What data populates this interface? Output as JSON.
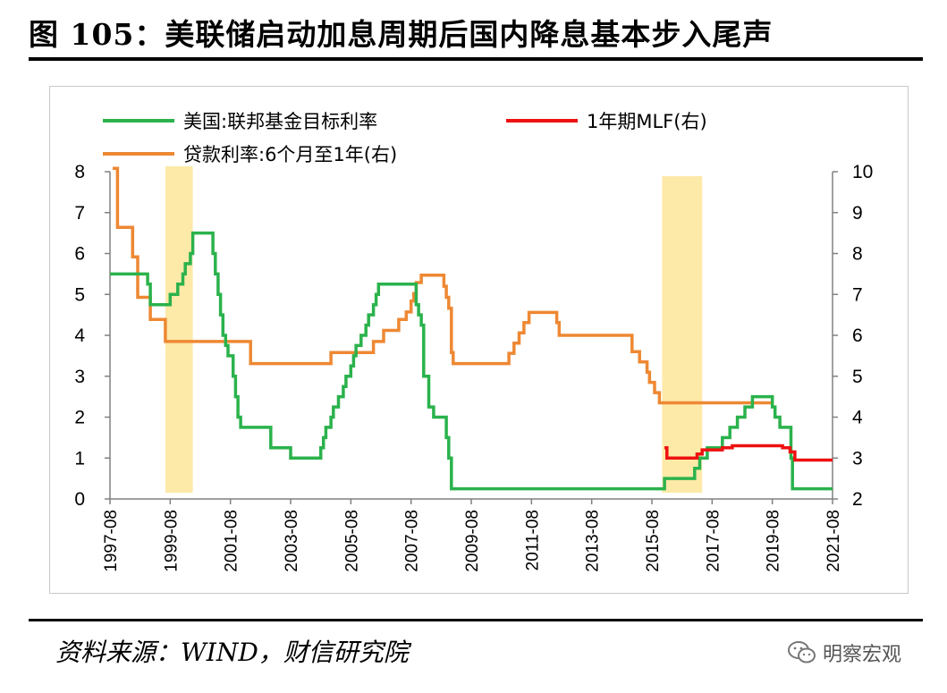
{
  "title": "图 105：美联储启动加息周期后国内降息基本步入尾声",
  "source": "资料来源：WIND，财信研究院",
  "watermark": "明察宏观",
  "watermark_icon": "wechat-icon",
  "chart_data": {
    "type": "line",
    "y_left_lim": [
      0,
      8
    ],
    "y_left_ticks": [
      "0",
      "1",
      "2",
      "3",
      "4",
      "5",
      "6",
      "7",
      "8"
    ],
    "y_right_lim": [
      2,
      10
    ],
    "y_right_ticks": [
      "2",
      "3",
      "4",
      "5",
      "6",
      "7",
      "8",
      "9",
      "10"
    ],
    "x_range": [
      1997.58,
      2021.58
    ],
    "x_ticks": [
      "1997-08",
      "1999-08",
      "2001-08",
      "2003-08",
      "2005-08",
      "2007-08",
      "2009-08",
      "2011-08",
      "2013-08",
      "2015-08",
      "2017-08",
      "2019-08",
      "2021-08"
    ],
    "grid": false,
    "legend": "top",
    "shaded_periods": [
      [
        1999.42,
        2000.33
      ],
      [
        2015.92,
        2017.25
      ]
    ],
    "series": [
      {
        "name": "美国:联邦基金目标利率",
        "axis": "left",
        "color": "#2bb24c",
        "points": [
          [
            1997.58,
            5.5
          ],
          [
            1998.75,
            5.5
          ],
          [
            1998.83,
            5.25
          ],
          [
            1998.92,
            4.75
          ],
          [
            1999.5,
            4.75
          ],
          [
            1999.58,
            5.0
          ],
          [
            1999.83,
            5.25
          ],
          [
            2000.0,
            5.5
          ],
          [
            2000.08,
            5.75
          ],
          [
            2000.25,
            6.0
          ],
          [
            2000.33,
            6.5
          ],
          [
            2000.92,
            6.5
          ],
          [
            2001.0,
            6.0
          ],
          [
            2001.08,
            5.5
          ],
          [
            2001.17,
            5.0
          ],
          [
            2001.25,
            4.5
          ],
          [
            2001.33,
            4.0
          ],
          [
            2001.42,
            3.75
          ],
          [
            2001.5,
            3.5
          ],
          [
            2001.67,
            3.0
          ],
          [
            2001.75,
            2.5
          ],
          [
            2001.83,
            2.0
          ],
          [
            2001.92,
            1.75
          ],
          [
            2002.83,
            1.75
          ],
          [
            2002.92,
            1.25
          ],
          [
            2003.5,
            1.25
          ],
          [
            2003.58,
            1.0
          ],
          [
            2004.5,
            1.0
          ],
          [
            2004.58,
            1.25
          ],
          [
            2004.67,
            1.5
          ],
          [
            2004.75,
            1.75
          ],
          [
            2004.92,
            2.0
          ],
          [
            2005.0,
            2.25
          ],
          [
            2005.17,
            2.5
          ],
          [
            2005.33,
            2.75
          ],
          [
            2005.42,
            3.0
          ],
          [
            2005.58,
            3.25
          ],
          [
            2005.67,
            3.5
          ],
          [
            2005.75,
            3.75
          ],
          [
            2005.92,
            4.0
          ],
          [
            2006.08,
            4.25
          ],
          [
            2006.17,
            4.5
          ],
          [
            2006.33,
            4.75
          ],
          [
            2006.42,
            5.0
          ],
          [
            2006.5,
            5.25
          ],
          [
            2007.67,
            5.25
          ],
          [
            2007.75,
            4.75
          ],
          [
            2007.83,
            4.5
          ],
          [
            2007.92,
            4.25
          ],
          [
            2008.0,
            3.0
          ],
          [
            2008.17,
            2.25
          ],
          [
            2008.33,
            2.0
          ],
          [
            2008.75,
            1.5
          ],
          [
            2008.83,
            1.0
          ],
          [
            2008.92,
            0.25
          ],
          [
            2015.92,
            0.25
          ],
          [
            2016.0,
            0.5
          ],
          [
            2016.92,
            0.5
          ],
          [
            2017.0,
            0.75
          ],
          [
            2017.17,
            1.0
          ],
          [
            2017.42,
            1.25
          ],
          [
            2017.92,
            1.5
          ],
          [
            2018.17,
            1.75
          ],
          [
            2018.42,
            2.0
          ],
          [
            2018.67,
            2.25
          ],
          [
            2018.92,
            2.5
          ],
          [
            2019.5,
            2.5
          ],
          [
            2019.58,
            2.25
          ],
          [
            2019.67,
            2.0
          ],
          [
            2019.83,
            1.75
          ],
          [
            2020.17,
            1.75
          ],
          [
            2020.2,
            1.0
          ],
          [
            2020.25,
            0.25
          ],
          [
            2021.58,
            0.25
          ]
        ]
      },
      {
        "name": "1年期MLF(右)",
        "axis": "right",
        "color": "#ee1111",
        "points": [
          [
            2016.0,
            3.25
          ],
          [
            2016.08,
            3.0
          ],
          [
            2017.0,
            3.0
          ],
          [
            2017.08,
            3.1
          ],
          [
            2017.25,
            3.2
          ],
          [
            2017.42,
            3.2
          ],
          [
            2017.92,
            3.25
          ],
          [
            2018.25,
            3.3
          ],
          [
            2019.83,
            3.3
          ],
          [
            2019.92,
            3.25
          ],
          [
            2020.17,
            3.15
          ],
          [
            2020.33,
            2.95
          ],
          [
            2021.58,
            2.95
          ]
        ]
      },
      {
        "name": "贷款利率:6个月至1年(右)",
        "axis": "right",
        "color": "#ee8833",
        "points": [
          [
            1997.67,
            10.08
          ],
          [
            1997.83,
            8.64
          ],
          [
            1998.33,
            7.92
          ],
          [
            1998.5,
            6.93
          ],
          [
            1998.92,
            6.39
          ],
          [
            1999.42,
            5.85
          ],
          [
            2002.17,
            5.85
          ],
          [
            2002.25,
            5.31
          ],
          [
            2004.83,
            5.31
          ],
          [
            2004.92,
            5.58
          ],
          [
            2006.33,
            5.85
          ],
          [
            2006.67,
            6.12
          ],
          [
            2007.17,
            6.39
          ],
          [
            2007.42,
            6.57
          ],
          [
            2007.58,
            6.84
          ],
          [
            2007.67,
            7.02
          ],
          [
            2007.75,
            7.29
          ],
          [
            2007.92,
            7.47
          ],
          [
            2008.67,
            7.2
          ],
          [
            2008.75,
            6.93
          ],
          [
            2008.83,
            6.66
          ],
          [
            2008.92,
            5.58
          ],
          [
            2008.98,
            5.31
          ],
          [
            2010.75,
            5.31
          ],
          [
            2010.83,
            5.56
          ],
          [
            2011.0,
            5.81
          ],
          [
            2011.17,
            6.06
          ],
          [
            2011.33,
            6.31
          ],
          [
            2011.5,
            6.56
          ],
          [
            2012.42,
            6.31
          ],
          [
            2012.5,
            6.0
          ],
          [
            2014.83,
            6.0
          ],
          [
            2014.92,
            5.6
          ],
          [
            2015.17,
            5.35
          ],
          [
            2015.42,
            5.1
          ],
          [
            2015.5,
            4.85
          ],
          [
            2015.67,
            4.6
          ],
          [
            2015.83,
            4.35
          ],
          [
            2019.58,
            4.35
          ]
        ]
      }
    ]
  }
}
